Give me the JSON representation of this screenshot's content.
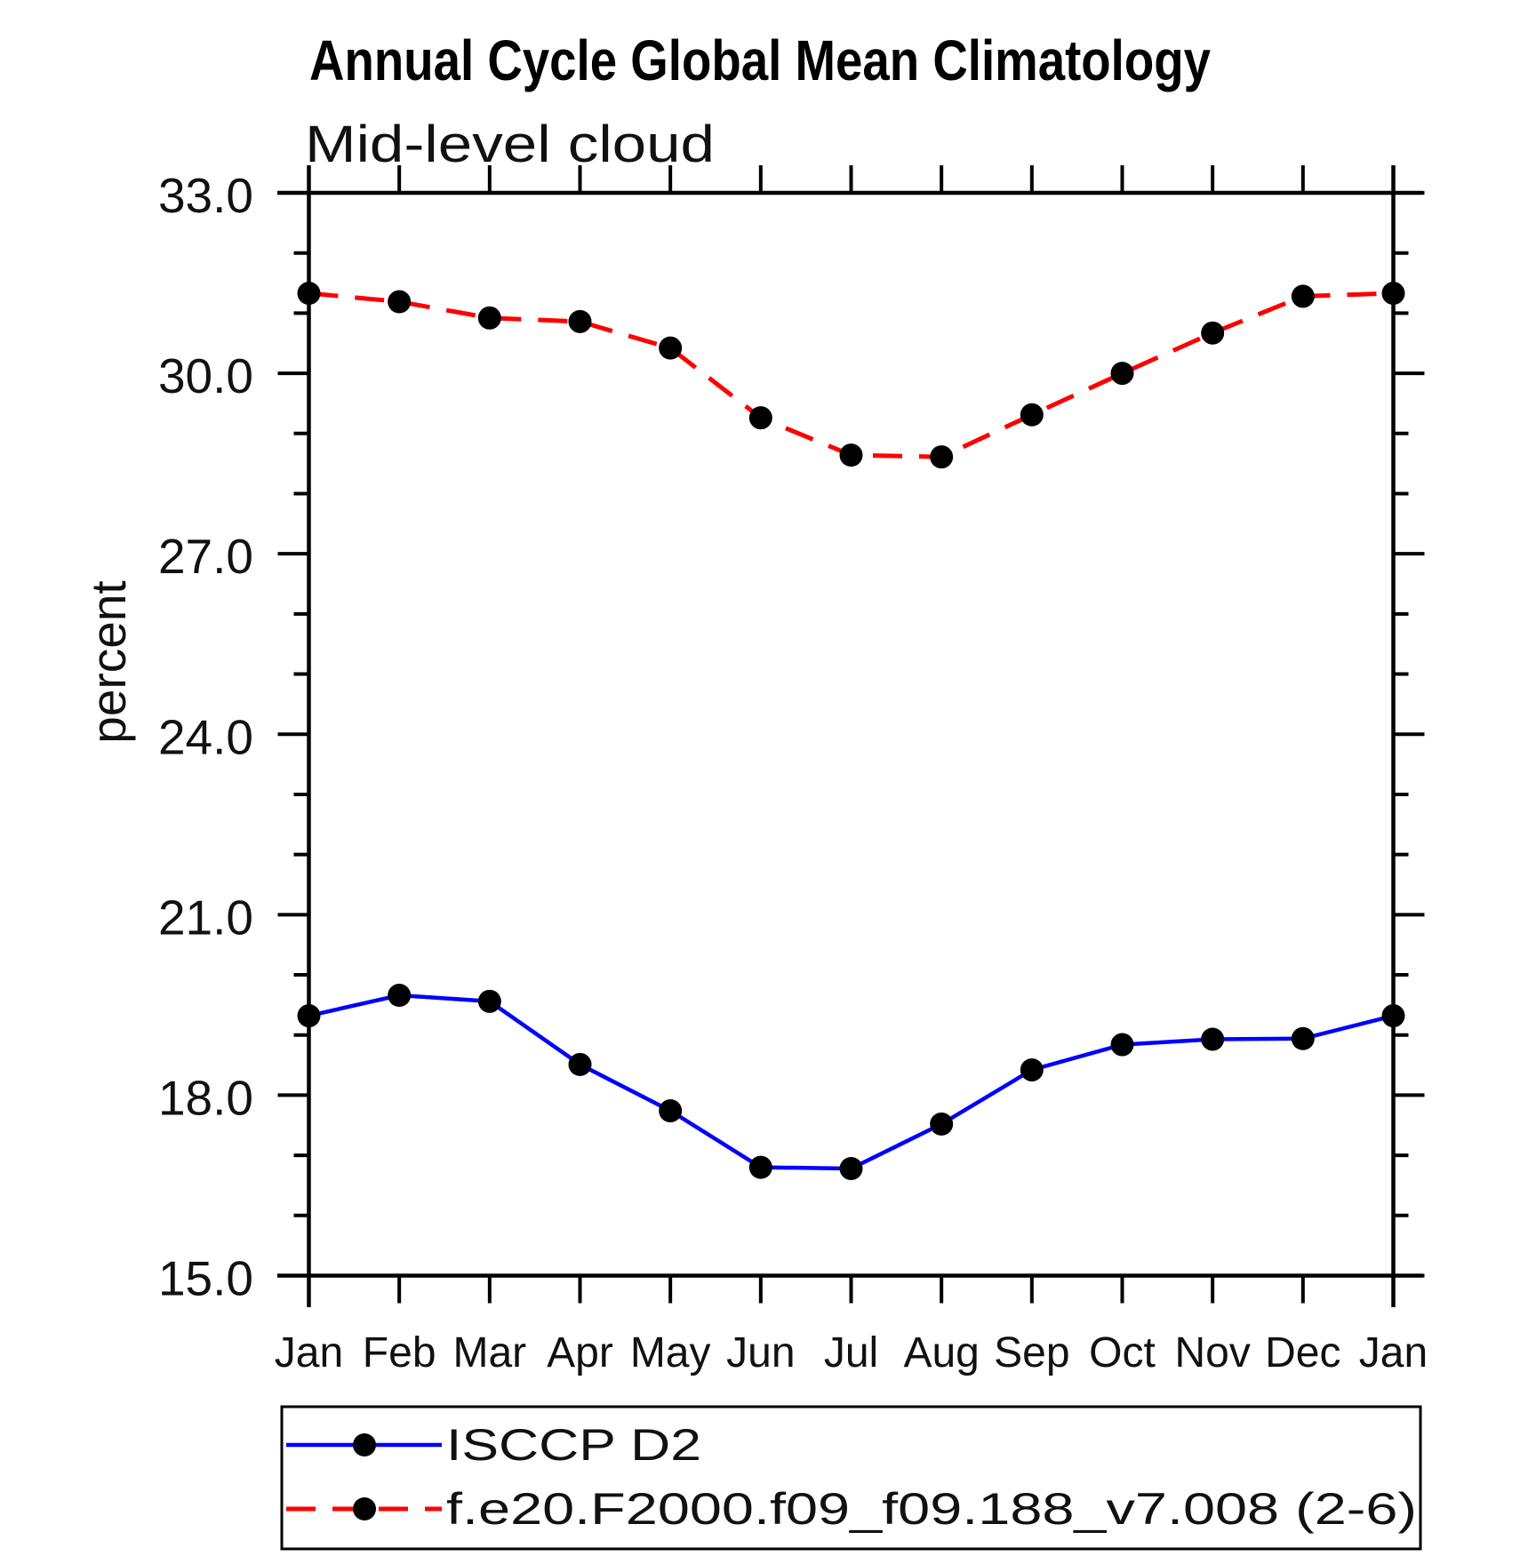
{
  "page": {
    "background": "#ffffff"
  },
  "chart_data": {
    "type": "line",
    "title": "Annual Cycle Global Mean Climatology",
    "subtitle": "Mid-level cloud",
    "xlabel": "",
    "ylabel": "percent",
    "categories": [
      "Jan",
      "Feb",
      "Mar",
      "Apr",
      "May",
      "Jun",
      "Jul",
      "Aug",
      "Sep",
      "Oct",
      "Nov",
      "Dec",
      "Jan"
    ],
    "ylim": [
      15.0,
      33.0
    ],
    "ytick_values": [
      15,
      18,
      21,
      24,
      27,
      30,
      33
    ],
    "ytick_labels": [
      "15.0",
      "18.0",
      "21.0",
      "24.0",
      "27.0",
      "30.0",
      "33.0"
    ],
    "minor_tick_step": 1.0,
    "grid": false,
    "legend_position": "bottom-left-box",
    "axis_color": "#000000",
    "text_color": "#111111",
    "series": [
      {
        "name": "ISCCP D2",
        "color": "#0000ff",
        "line_style": "solid",
        "marker": "circle",
        "marker_color": "#000000",
        "values": [
          19.32,
          19.66,
          19.56,
          18.51,
          17.74,
          16.8,
          16.78,
          17.52,
          18.42,
          18.84,
          18.93,
          18.94,
          19.32
        ]
      },
      {
        "name": "f.e20.F2000.f09_f09.188_v7.008 (2-6)",
        "color": "#ff0000",
        "line_style": "dashed",
        "marker": "circle",
        "marker_color": "#000000",
        "values": [
          31.33,
          31.19,
          30.92,
          30.86,
          30.42,
          29.26,
          28.64,
          28.61,
          29.31,
          30.0,
          30.67,
          31.28,
          31.33
        ]
      }
    ]
  }
}
